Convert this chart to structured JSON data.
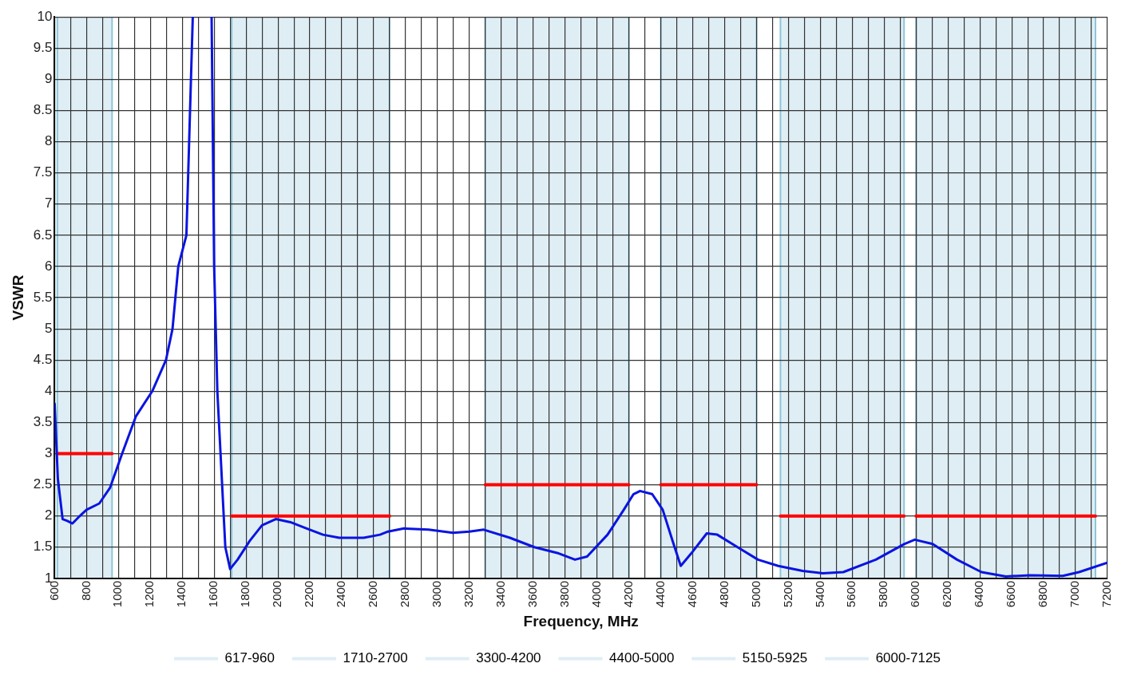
{
  "chart_data": {
    "type": "line",
    "xlabel": "Frequency, MHz",
    "ylabel": "VSWR",
    "xlim": [
      600,
      7200
    ],
    "ylim": [
      1,
      10
    ],
    "xticks": [
      600,
      {
        "value": 700,
        "label": null
      },
      800,
      {
        "value": 900,
        "label": null
      },
      1000,
      {
        "value": 1100,
        "label": null
      },
      1200,
      {
        "value": 1300,
        "label": null
      },
      1400,
      {
        "value": 1500,
        "label": null
      },
      1600,
      {
        "value": 1700,
        "label": null
      },
      1800,
      {
        "value": 1900,
        "label": null
      },
      2000,
      {
        "value": 2100,
        "label": null
      },
      2200,
      {
        "value": 2300,
        "label": null
      },
      2400,
      {
        "value": 2500,
        "label": null
      },
      2600,
      {
        "value": 2700,
        "label": null
      },
      2800,
      {
        "value": 2900,
        "label": null
      },
      3000,
      {
        "value": 3100,
        "label": null
      },
      3200,
      {
        "value": 3300,
        "label": null
      },
      3400,
      {
        "value": 3500,
        "label": null
      },
      3600,
      {
        "value": 3700,
        "label": null
      },
      3800,
      {
        "value": 3900,
        "label": null
      },
      4000,
      {
        "value": 4100,
        "label": null
      },
      4200,
      {
        "value": 4300,
        "label": null
      },
      4400,
      {
        "value": 4500,
        "label": null
      },
      4600,
      {
        "value": 4700,
        "label": null
      },
      4800,
      {
        "value": 4900,
        "label": null
      },
      5000,
      {
        "value": 5100,
        "label": null
      },
      5200,
      {
        "value": 5300,
        "label": null
      },
      5400,
      {
        "value": 5500,
        "label": null
      },
      5600,
      {
        "value": 5700,
        "label": null
      },
      5800,
      {
        "value": 5900,
        "label": null
      },
      6000,
      {
        "value": 6100,
        "label": null
      },
      6200,
      {
        "value": 6300,
        "label": null
      },
      6400,
      {
        "value": 6500,
        "label": null
      },
      6600,
      {
        "value": 6700,
        "label": null
      },
      6800,
      {
        "value": 6900,
        "label": null
      },
      7000,
      {
        "value": 7100,
        "label": null
      },
      7200
    ],
    "yticks": [
      1,
      1.5,
      2,
      2.5,
      3,
      3.5,
      4,
      4.5,
      5,
      5.5,
      6,
      6.5,
      7,
      7.5,
      8,
      8.5,
      9,
      9.5,
      10
    ],
    "grid": true,
    "legend": "bottom",
    "marker": "none",
    "line_style": "solid",
    "series": [
      {
        "color": "#0a14e0",
        "x": [
          600,
          620,
          650,
          680,
          712,
          750,
          800,
          880,
          947,
          1023,
          1110,
          1212,
          1298,
          1339,
          1375,
          1426,
          1466,
          1525,
          1584,
          1600,
          1620,
          1640,
          1660,
          1670,
          1700,
          1747,
          1823,
          1900,
          1986,
          2078,
          2180,
          2282,
          2384,
          2537,
          2640,
          2690,
          2790,
          2944,
          3097,
          3200,
          3290,
          3454,
          3607,
          3760,
          3862,
          3938,
          4066,
          4168,
          4229,
          4270,
          4346,
          4412,
          4474,
          4525,
          4591,
          4688,
          4754,
          4881,
          5009,
          5136,
          5289,
          5416,
          5544,
          5748,
          5926,
          5992,
          6104,
          6257,
          6410,
          6563,
          6716,
          6920,
          7022,
          7200
        ],
        "values": [
          3.8,
          2.6,
          1.95,
          1.92,
          1.88,
          1.98,
          2.1,
          2.2,
          2.45,
          3,
          3.6,
          4,
          4.5,
          5,
          6,
          6.5,
          10,
          null,
          10,
          6,
          4,
          3,
          2,
          1.5,
          1.15,
          1.3,
          1.6,
          1.85,
          1.95,
          1.9,
          1.8,
          1.7,
          1.65,
          1.65,
          1.7,
          1.75,
          1.8,
          1.78,
          1.73,
          1.75,
          1.78,
          1.65,
          1.5,
          1.4,
          1.3,
          1.35,
          1.7,
          2.1,
          2.35,
          2.4,
          2.35,
          2.1,
          1.6,
          1.2,
          1.4,
          1.72,
          1.7,
          1.5,
          1.3,
          1.2,
          1.12,
          1.08,
          1.1,
          1.3,
          1.55,
          1.62,
          1.55,
          1.3,
          1.1,
          1.03,
          1.05,
          1.04,
          1.1,
          1.25
        ]
      },
      {
        "color": "#ff0000",
        "x": [
          617,
          960
        ],
        "values": [
          3,
          3
        ]
      },
      {
        "color": "#ff0000",
        "x": [
          1710,
          2700
        ],
        "values": [
          2,
          2
        ]
      },
      {
        "color": "#ff0000",
        "x": [
          3300,
          4200
        ],
        "values": [
          2.5,
          2.5
        ]
      },
      {
        "color": "#ff0000",
        "x": [
          4400,
          5000
        ],
        "values": [
          2.5,
          2.5
        ]
      },
      {
        "color": "#ff0000",
        "x": [
          5150,
          5925
        ],
        "values": [
          2,
          2
        ]
      },
      {
        "color": "#ff0000",
        "x": [
          6000,
          7125
        ],
        "values": [
          2,
          2
        ]
      }
    ],
    "bands": [
      {
        "axis": "x",
        "from": 617,
        "to": 960,
        "label": "617-960",
        "color": "#dfeef5"
      },
      {
        "axis": "x",
        "from": 1710,
        "to": 2700,
        "label": "1710-2700",
        "color": "#dfeef5"
      },
      {
        "axis": "x",
        "from": 3300,
        "to": 4200,
        "label": "3300-4200",
        "color": "#dfeef5"
      },
      {
        "axis": "x",
        "from": 4400,
        "to": 5000,
        "label": "4400-5000",
        "color": "#dfeef5"
      },
      {
        "axis": "x",
        "from": 5150,
        "to": 5925,
        "label": "5150-5925",
        "color": "#dfeef5"
      },
      {
        "axis": "x",
        "from": 6000,
        "to": 7125,
        "label": "6000-7125",
        "color": "#dfeef5"
      }
    ]
  }
}
